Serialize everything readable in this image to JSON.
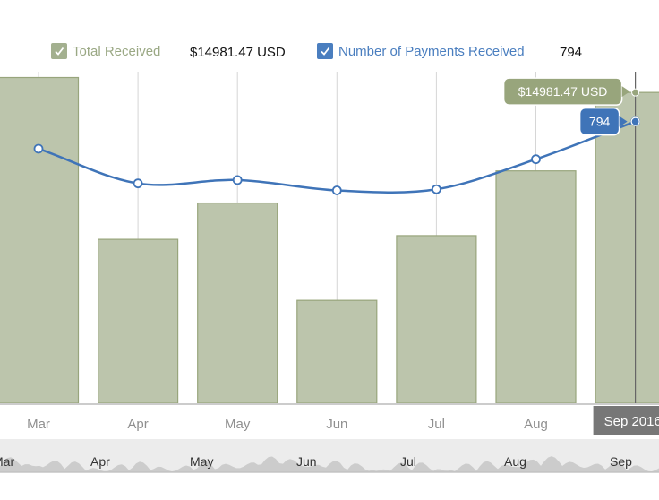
{
  "legend": {
    "total_received": {
      "label": "Total Received",
      "value": "$14981.47 USD",
      "checked": true,
      "color": "#a3b08f"
    },
    "payments_received": {
      "label": "Number of Payments Received",
      "value": "794",
      "checked": true,
      "color": "#4a7ebf"
    }
  },
  "tooltips": {
    "bar": "$14981.47 USD",
    "line": "794"
  },
  "crosshair_label": "Sep 2016",
  "colors": {
    "bar_fill": "#bcc5ac",
    "bar_stroke": "#98a57c",
    "line": "#3f74b8",
    "grid": "#d6d6d6",
    "axis_text": "#8f8f8f",
    "crosshair": "#666666",
    "tooltip_bar": "#98a57c",
    "tooltip_line": "#3f74b8",
    "navigator_bg": "#ececec",
    "navigator_area": "#cccccc"
  },
  "chart_data": {
    "type": "bar",
    "title": "",
    "xlabel": "",
    "ylabel": "",
    "categories": [
      "Mar",
      "Apr",
      "May",
      "Jun",
      "Jul",
      "Aug",
      "Sep"
    ],
    "series": [
      {
        "name": "Total Received",
        "kind": "bar",
        "values": [
          15700,
          7900,
          9650,
          4960,
          8080,
          11200,
          14981.47
        ]
      },
      {
        "name": "Number of Payments Received",
        "kind": "line",
        "values": [
          553,
          246,
          276,
          184,
          194,
          460,
          794
        ]
      }
    ],
    "ylim_bar": [
      0,
      15981
    ],
    "ylim_line": [
      -1700,
      1235
    ],
    "grid": true,
    "navigator_labels": [
      "Mar",
      "Apr",
      "May",
      "Jun",
      "Jul",
      "Aug",
      "Sep"
    ]
  }
}
